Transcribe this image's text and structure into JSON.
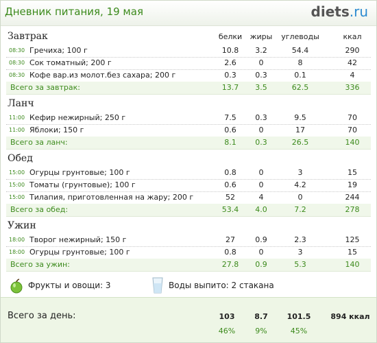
{
  "header": {
    "title": "Дневник питания, 19 мая",
    "logo": "diets",
    "logo_suffix": ".ru"
  },
  "columns": [
    "белки",
    "жиры",
    "углеводы",
    "ккал"
  ],
  "meals": [
    {
      "name": "Завтрак",
      "items": [
        {
          "time": "08:30",
          "food": "Гречиха; 100 г",
          "values": [
            "10.8",
            "3.2",
            "54.4",
            "290"
          ]
        },
        {
          "time": "08:30",
          "food": "Сок томатный; 200 г",
          "values": [
            "2.6",
            "0",
            "8",
            "42"
          ]
        },
        {
          "time": "08:30",
          "food": "Кофе вар.из молот.без сахара; 200 г",
          "values": [
            "0.3",
            "0.3",
            "0.1",
            "4"
          ]
        }
      ],
      "total": {
        "label": "Всего за завтрак:",
        "values": [
          "13.7",
          "3.5",
          "62.5",
          "336"
        ]
      }
    },
    {
      "name": "Ланч",
      "items": [
        {
          "time": "11:00",
          "food": "Кефир нежирный; 250 г",
          "values": [
            "7.5",
            "0.3",
            "9.5",
            "70"
          ]
        },
        {
          "time": "11:00",
          "food": "Яблоки; 150 г",
          "values": [
            "0.6",
            "0",
            "17",
            "70"
          ]
        }
      ],
      "total": {
        "label": "Всего за ланч:",
        "values": [
          "8.1",
          "0.3",
          "26.5",
          "140"
        ]
      }
    },
    {
      "name": "Обед",
      "items": [
        {
          "time": "15:00",
          "food": "Огурцы грунтовые; 100 г",
          "values": [
            "0.8",
            "0",
            "3",
            "15"
          ]
        },
        {
          "time": "15:00",
          "food": "Томаты (грунтовые); 100 г",
          "values": [
            "0.6",
            "0",
            "4.2",
            "19"
          ]
        },
        {
          "time": "15:00",
          "food": "Тилапия, приготовленная на жару; 200 г",
          "values": [
            "52",
            "4",
            "0",
            "244"
          ]
        }
      ],
      "total": {
        "label": "Всего за обед:",
        "values": [
          "53.4",
          "4.0",
          "7.2",
          "278"
        ]
      }
    },
    {
      "name": "Ужин",
      "items": [
        {
          "time": "18:00",
          "food": "Творог нежирный; 150 г",
          "values": [
            "27",
            "0.9",
            "2.3",
            "125"
          ]
        },
        {
          "time": "18:00",
          "food": "Огурцы грунтовые; 100 г",
          "values": [
            "0.8",
            "0",
            "3",
            "15"
          ]
        }
      ],
      "total": {
        "label": "Всего за ужин:",
        "values": [
          "27.8",
          "0.9",
          "5.3",
          "140"
        ]
      }
    }
  ],
  "footer": {
    "fruits": "Фрукты и овощи: 3",
    "water": "Воды выпито: 2 стакана"
  },
  "day_total": {
    "label": "Всего за день:",
    "values": [
      "103",
      "8.7",
      "101.5",
      "894 ккал"
    ],
    "percents": [
      "46%",
      "9%",
      "45%"
    ]
  }
}
